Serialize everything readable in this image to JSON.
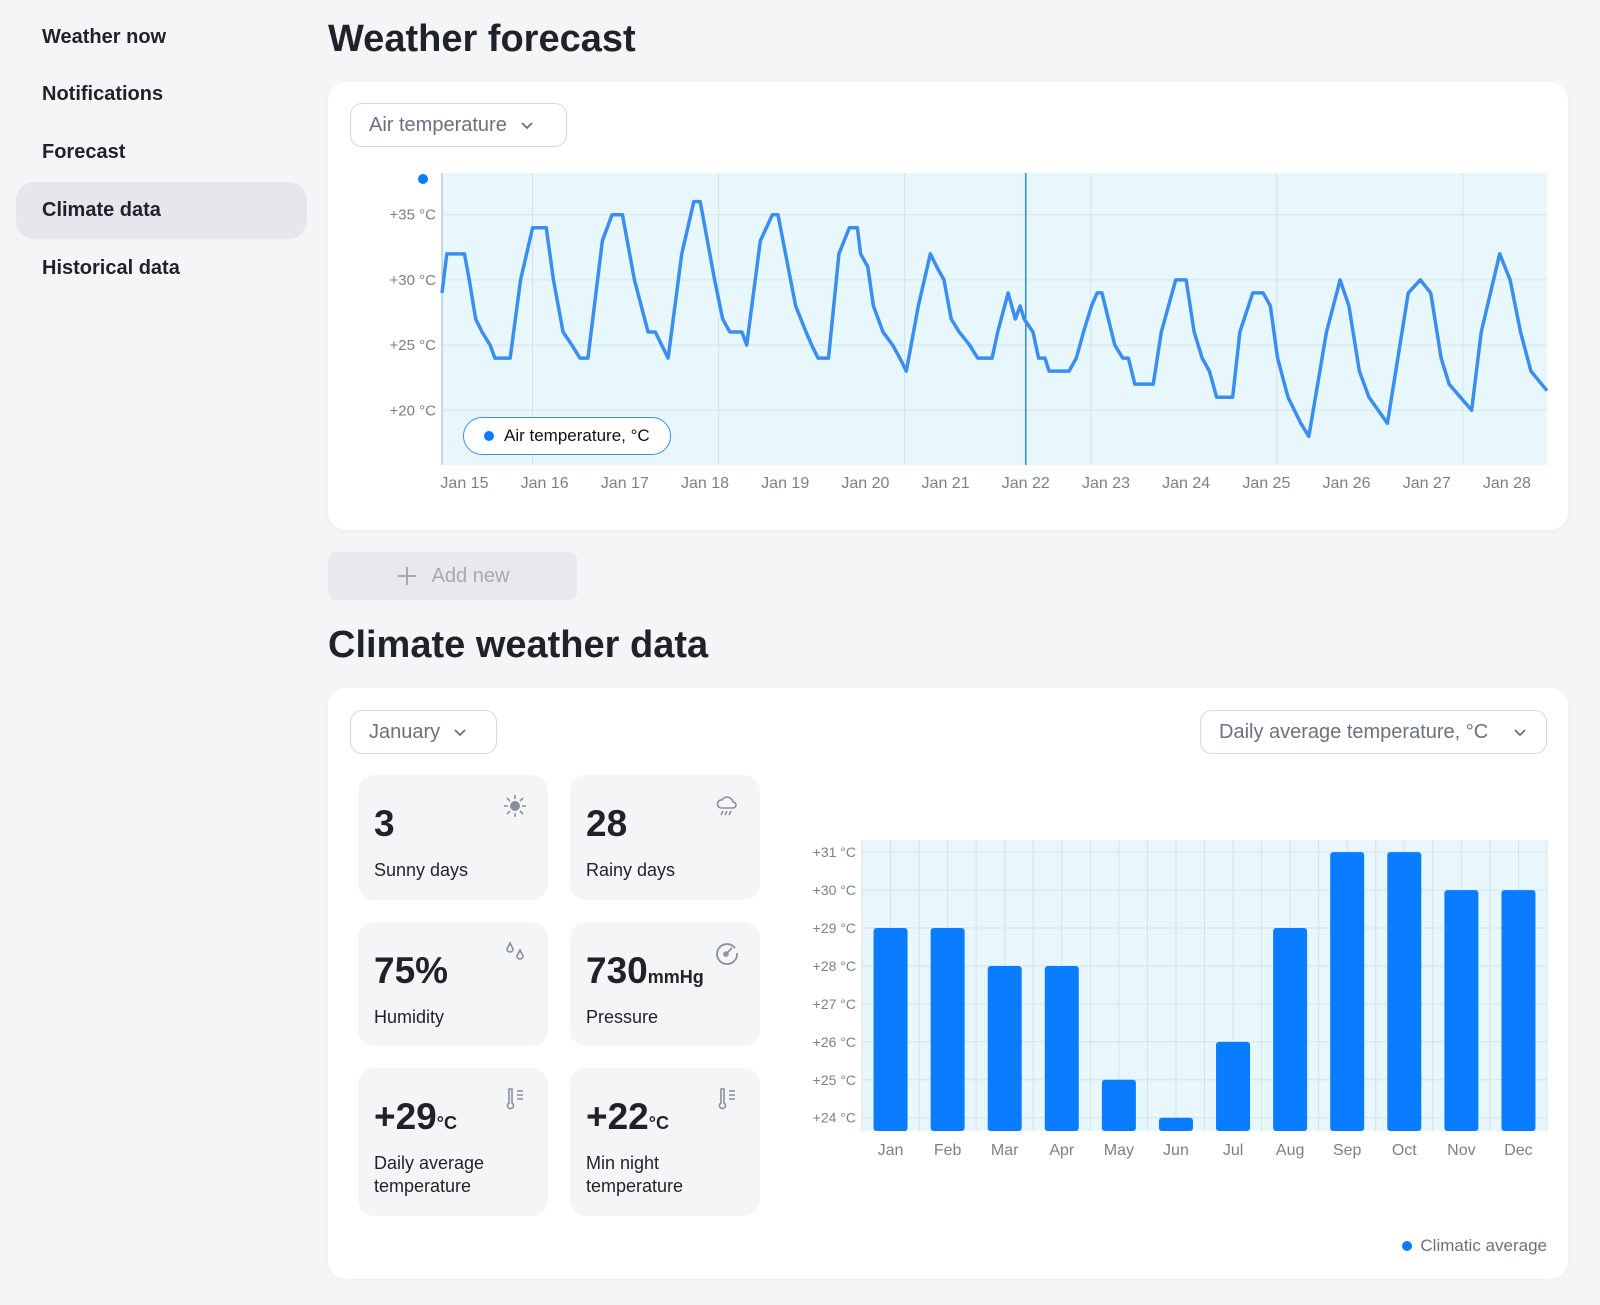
{
  "sidebar": {
    "items": [
      {
        "label": "Weather now"
      },
      {
        "label": "Notifications"
      },
      {
        "label": "Forecast"
      },
      {
        "label": "Climate data",
        "active": true
      },
      {
        "label": "Historical data"
      }
    ]
  },
  "forecast": {
    "title": "Weather forecast",
    "dropdown": "Air temperature",
    "add_new": "Add new",
    "legend": "Air temperature, °C"
  },
  "climate": {
    "title": "Climate weather data",
    "month_dropdown": "January",
    "metric_dropdown": "Daily average temperature, °C",
    "legend": "Climatic average",
    "stats": [
      {
        "value": "3",
        "unit": "",
        "label": "Sunny days",
        "icon": "sun-icon"
      },
      {
        "value": "28",
        "unit": "",
        "label": "Rainy days",
        "icon": "rain-cloud-icon"
      },
      {
        "value": "75%",
        "unit": "",
        "label": "Humidity",
        "icon": "droplets-icon"
      },
      {
        "value": "730",
        "unit": "mmHg",
        "label": "Pressure",
        "icon": "gauge-icon"
      },
      {
        "value": "+29",
        "unit": "°C",
        "label": "Daily average temperature",
        "icon": "thermometer-icon"
      },
      {
        "value": "+22",
        "unit": "°C",
        "label": "Min night temperature",
        "icon": "thermometer-icon"
      }
    ]
  },
  "colors": {
    "accent": "#0a7cff",
    "line": "#3a8ef0",
    "plot_bg": "#e8f7fc"
  },
  "chart_data": [
    {
      "type": "line",
      "title": "Air temperature",
      "legend": [
        "Air temperature, °C"
      ],
      "x_ticks": [
        "Jan 15",
        "Jan 16",
        "Jan 17",
        "Jan 18",
        "Jan 19",
        "Jan 20",
        "Jan 21",
        "Jan 22",
        "Jan 23",
        "Jan 24",
        "Jan 25",
        "Jan 26",
        "Jan 27",
        "Jan 28"
      ],
      "y_ticks": [
        "+20 °C",
        "+25 °C",
        "+30 °C",
        "+35 °C"
      ],
      "y_tick_values": [
        20,
        25,
        30,
        35
      ],
      "xlim": [
        -0.28,
        13.5
      ],
      "ylim": [
        15.8,
        38.2
      ],
      "current_marker_day": 7,
      "x_unit": "days since Jan 15",
      "points": [
        [
          -0.28,
          29
        ],
        [
          -0.22,
          32
        ],
        [
          0,
          32
        ],
        [
          0.06,
          30
        ],
        [
          0.14,
          27
        ],
        [
          0.22,
          26
        ],
        [
          0.32,
          25
        ],
        [
          0.38,
          24
        ],
        [
          0.57,
          24
        ],
        [
          0.7,
          30
        ],
        [
          0.85,
          34
        ],
        [
          1.02,
          34
        ],
        [
          1.11,
          30
        ],
        [
          1.23,
          26
        ],
        [
          1.34,
          25
        ],
        [
          1.44,
          24
        ],
        [
          1.54,
          24
        ],
        [
          1.72,
          33
        ],
        [
          1.84,
          35
        ],
        [
          1.97,
          35
        ],
        [
          2.12,
          30
        ],
        [
          2.29,
          26
        ],
        [
          2.38,
          26
        ],
        [
          2.46,
          25
        ],
        [
          2.54,
          24
        ],
        [
          2.71,
          32
        ],
        [
          2.86,
          36
        ],
        [
          2.94,
          36
        ],
        [
          3.12,
          30
        ],
        [
          3.22,
          27
        ],
        [
          3.31,
          26
        ],
        [
          3.46,
          26
        ],
        [
          3.52,
          25
        ],
        [
          3.69,
          33
        ],
        [
          3.84,
          35
        ],
        [
          3.91,
          35
        ],
        [
          4.13,
          28
        ],
        [
          4.26,
          26
        ],
        [
          4.33,
          25
        ],
        [
          4.41,
          24
        ],
        [
          4.54,
          24
        ],
        [
          4.67,
          32
        ],
        [
          4.8,
          34
        ],
        [
          4.9,
          34
        ],
        [
          4.94,
          32
        ],
        [
          5.03,
          31
        ],
        [
          5.1,
          28
        ],
        [
          5.22,
          26
        ],
        [
          5.34,
          25
        ],
        [
          5.43,
          24
        ],
        [
          5.51,
          23
        ],
        [
          5.66,
          28
        ],
        [
          5.81,
          32
        ],
        [
          5.89,
          31
        ],
        [
          5.98,
          30
        ],
        [
          6.07,
          27
        ],
        [
          6.17,
          26
        ],
        [
          6.3,
          25
        ],
        [
          6.4,
          24
        ],
        [
          6.58,
          24
        ],
        [
          6.65,
          26
        ],
        [
          6.78,
          29
        ],
        [
          6.87,
          27
        ],
        [
          6.93,
          28
        ],
        [
          6.98,
          27
        ],
        [
          7.09,
          26
        ],
        [
          7.16,
          24
        ],
        [
          7.24,
          24
        ],
        [
          7.29,
          23
        ],
        [
          7.54,
          23
        ],
        [
          7.63,
          24
        ],
        [
          7.72,
          26
        ],
        [
          7.82,
          28
        ],
        [
          7.89,
          29
        ],
        [
          7.95,
          29
        ],
        [
          8.11,
          25
        ],
        [
          8.21,
          24
        ],
        [
          8.28,
          24
        ],
        [
          8.36,
          22
        ],
        [
          8.59,
          22
        ],
        [
          8.69,
          26
        ],
        [
          8.87,
          30
        ],
        [
          9,
          30
        ],
        [
          9.1,
          26
        ],
        [
          9.2,
          24
        ],
        [
          9.29,
          23
        ],
        [
          9.38,
          21
        ],
        [
          9.58,
          21
        ],
        [
          9.67,
          26
        ],
        [
          9.83,
          29
        ],
        [
          9.96,
          29
        ],
        [
          10.05,
          28
        ],
        [
          10.14,
          24
        ],
        [
          10.27,
          21
        ],
        [
          10.43,
          19
        ],
        [
          10.53,
          18
        ],
        [
          10.75,
          26
        ],
        [
          10.92,
          30
        ],
        [
          11.03,
          28
        ],
        [
          11.16,
          23
        ],
        [
          11.28,
          21
        ],
        [
          11.51,
          19
        ],
        [
          11.77,
          29
        ],
        [
          11.92,
          30
        ],
        [
          12.05,
          29
        ],
        [
          12.18,
          24
        ],
        [
          12.28,
          22
        ],
        [
          12.56,
          20
        ],
        [
          12.68,
          26
        ],
        [
          12.91,
          32
        ],
        [
          13.04,
          30
        ],
        [
          13.17,
          26
        ],
        [
          13.3,
          23
        ],
        [
          13.5,
          21.5
        ]
      ]
    },
    {
      "type": "bar",
      "legend": [
        "Climatic average"
      ],
      "categories": [
        "Jan",
        "Feb",
        "Mar",
        "Apr",
        "May",
        "Jun",
        "Jul",
        "Aug",
        "Sep",
        "Oct",
        "Nov",
        "Dec"
      ],
      "values": [
        29,
        29,
        28,
        28,
        25,
        24,
        26,
        29,
        31,
        31,
        30,
        30
      ],
      "y_ticks": [
        "+24 °C",
        "+25 °C",
        "+26 °C",
        "+27 °C",
        "+28 °C",
        "+29 °C",
        "+30 °C",
        "+31 °C"
      ],
      "y_tick_values": [
        24,
        25,
        26,
        27,
        28,
        29,
        30,
        31
      ],
      "ylim": [
        23.65,
        31.32
      ]
    }
  ]
}
